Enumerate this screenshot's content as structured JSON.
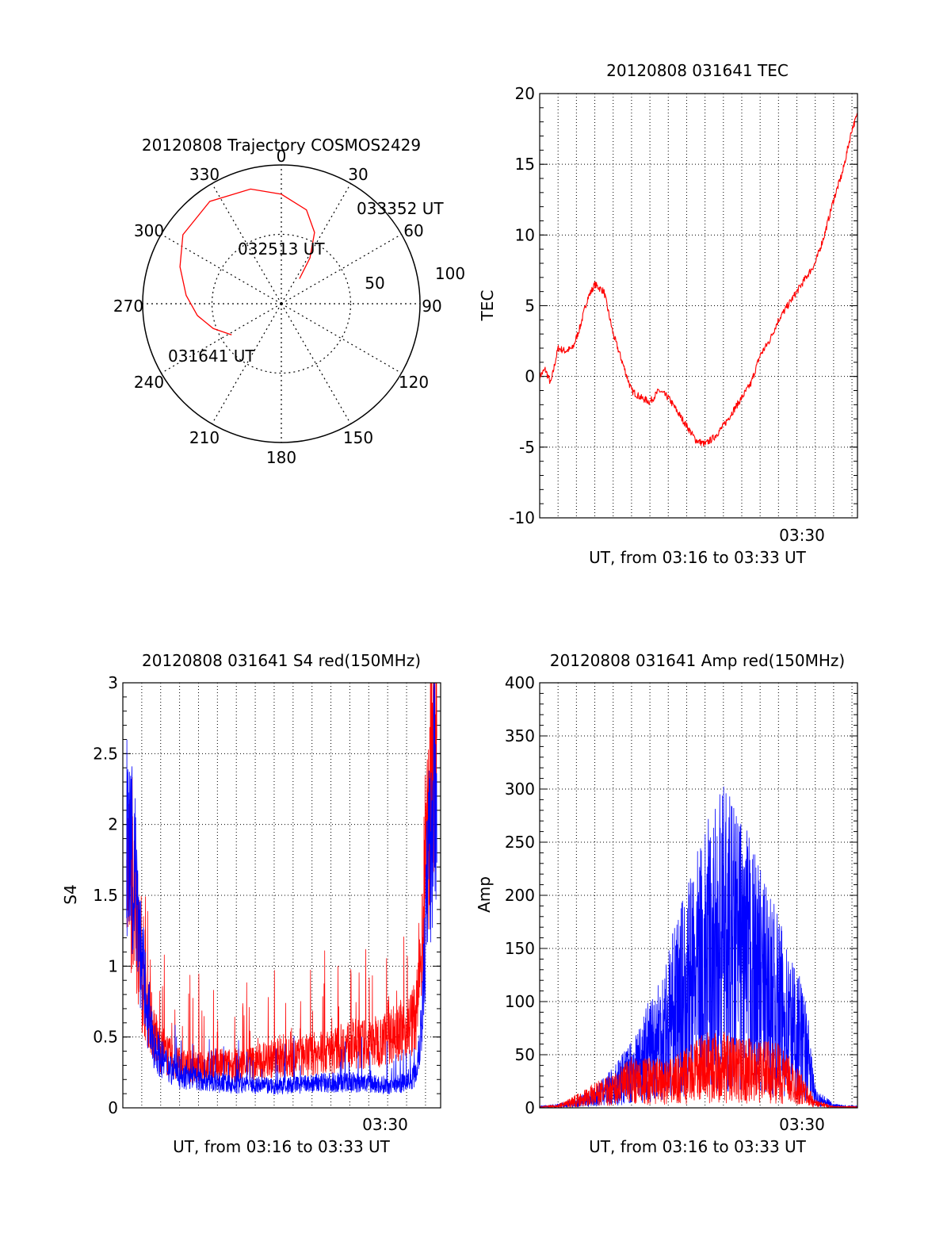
{
  "chart_data": [
    {
      "id": "trajectory",
      "type": "polar",
      "title": "20120808 Trajectory COSMOS2429",
      "azimuth_labels": [
        "0",
        "30",
        "60",
        "90",
        "120",
        "150",
        "180",
        "210",
        "240",
        "270",
        "300",
        "330"
      ],
      "elevation_labels": [
        "50",
        "100"
      ],
      "series": [
        {
          "color": "#ff0000",
          "points_az_el": [
            [
              238,
              52
            ],
            [
              250,
              43
            ],
            [
              262,
              35
            ],
            [
              275,
              28
            ],
            [
              290,
              20
            ],
            [
              305,
              12
            ],
            [
              325,
              9
            ],
            [
              345,
              13
            ],
            [
              0,
              19
            ],
            [
              15,
              27
            ],
            [
              25,
              39
            ],
            [
              32,
              55
            ],
            [
              36,
              70
            ]
          ]
        }
      ],
      "annotations": [
        "033352 UT",
        "032513 UT",
        "031641 UT"
      ]
    },
    {
      "id": "tec",
      "type": "line",
      "title": "20120808 031641 TEC",
      "xlabel": "UT, from 03:16 to 03:33 UT",
      "ylabel": "TEC",
      "x_tick_label": "03:30",
      "ylim": [
        -10,
        20
      ],
      "y_ticks": [
        "-10",
        "-5",
        "0",
        "5",
        "10",
        "15",
        "20"
      ],
      "x_minutes": [
        0,
        0.3,
        0.6,
        1.0,
        1.4,
        1.8,
        2.2,
        2.6,
        3.0,
        3.5,
        4.0,
        4.5,
        5.0,
        5.5,
        6.0,
        6.5,
        7.0,
        7.5,
        8.0,
        8.5,
        9.0,
        9.5,
        10.0,
        10.5,
        11.0,
        11.5,
        12.0,
        12.5,
        13.0,
        13.5,
        14.0,
        14.5,
        15.0,
        15.5,
        16.0,
        16.5,
        17.0,
        17.3
      ],
      "series": [
        {
          "color": "#ff0000",
          "values": [
            0,
            0.5,
            -0.5,
            2.0,
            1.8,
            2.0,
            3.5,
            5.5,
            6.5,
            6.0,
            3.0,
            1.0,
            -1.0,
            -1.5,
            -1.8,
            -1.0,
            -1.5,
            -2.5,
            -3.5,
            -4.5,
            -4.8,
            -4.3,
            -3.5,
            -2.5,
            -1.5,
            -0.5,
            1.5,
            2.5,
            4.0,
            5.0,
            6.0,
            7.0,
            8.0,
            10.0,
            12.5,
            14.5,
            17.5,
            18.5
          ]
        }
      ]
    },
    {
      "id": "s4",
      "type": "line",
      "title": "20120808 031641 S4 red(150MHz)",
      "xlabel": "UT, from 03:16 to 03:33 UT",
      "ylabel": "S4",
      "x_tick_label": "03:30",
      "ylim": [
        0,
        3
      ],
      "y_ticks": [
        "0",
        "0.5",
        "1",
        "1.5",
        "2",
        "2.5",
        "3"
      ],
      "x_minutes": [
        0.2,
        0.4,
        0.6,
        0.8,
        1.0,
        1.5,
        2.0,
        2.5,
        3.0,
        4.0,
        5.0,
        6.0,
        7.0,
        8.0,
        9.0,
        10.0,
        11.0,
        12.0,
        13.0,
        14.0,
        14.5,
        15.0,
        15.5,
        15.8,
        16.0,
        16.3,
        16.6
      ],
      "series": [
        {
          "color": "#ff0000",
          "values": [
            1.8,
            1.6,
            1.5,
            1.2,
            0.9,
            0.6,
            0.4,
            0.35,
            0.3,
            0.28,
            0.3,
            0.3,
            0.32,
            0.35,
            0.35,
            0.38,
            0.4,
            0.45,
            0.45,
            0.5,
            0.55,
            0.55,
            0.65,
            1.0,
            1.6,
            2.4,
            2.8
          ]
        },
        {
          "color": "#0000ff",
          "values": [
            1.9,
            1.7,
            1.8,
            1.4,
            1.0,
            0.5,
            0.35,
            0.28,
            0.22,
            0.2,
            0.18,
            0.16,
            0.16,
            0.15,
            0.16,
            0.17,
            0.18,
            0.18,
            0.17,
            0.16,
            0.17,
            0.18,
            0.25,
            0.6,
            1.3,
            2.0,
            2.5
          ]
        }
      ]
    },
    {
      "id": "amp",
      "type": "line",
      "title": "20120808 031641 Amp red(150MHz)",
      "xlabel": "UT, from 03:16 to 03:33 UT",
      "ylabel": "Amp",
      "x_tick_label": "03:30",
      "ylim": [
        0,
        400
      ],
      "y_ticks": [
        "0",
        "50",
        "100",
        "150",
        "200",
        "250",
        "300",
        "350",
        "400"
      ],
      "x_minutes": [
        0,
        1,
        2,
        3,
        4,
        5,
        6,
        7,
        8,
        9,
        10,
        11,
        12,
        13,
        14,
        14.5,
        15,
        16,
        17.3
      ],
      "series": [
        {
          "color": "#0000ff",
          "values": [
            1,
            2,
            5,
            10,
            20,
            35,
            55,
            80,
            110,
            140,
            160,
            145,
            120,
            95,
            70,
            55,
            10,
            2,
            1
          ]
        },
        {
          "color": "#ff0000",
          "values": [
            1,
            2,
            8,
            15,
            20,
            30,
            30,
            28,
            35,
            45,
            45,
            42,
            40,
            38,
            25,
            15,
            5,
            1,
            1
          ]
        }
      ]
    }
  ]
}
